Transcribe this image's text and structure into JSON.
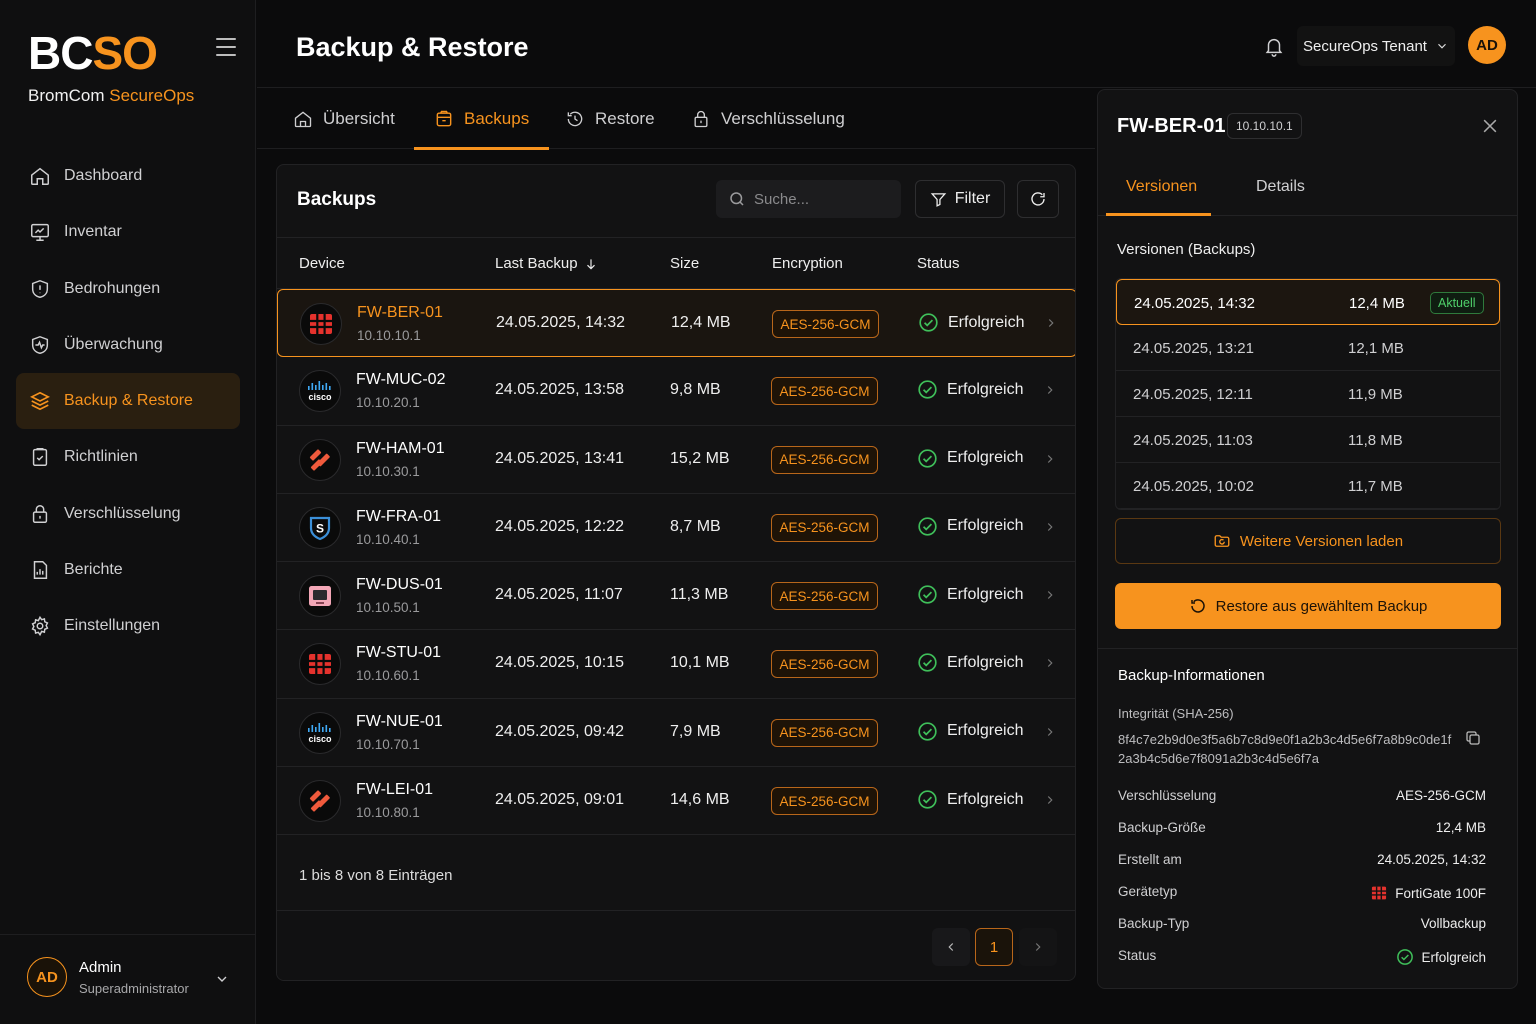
{
  "brand": {
    "logo_bc": "BC",
    "logo_so": "SO",
    "sub_bromcom": "BromCom",
    "sub_secureops": "SecureOps"
  },
  "sidebar": {
    "items": [
      {
        "label": "Dashboard",
        "icon": "home-icon"
      },
      {
        "label": "Inventar",
        "icon": "monitor-icon"
      },
      {
        "label": "Bedrohungen",
        "icon": "shield-alert-icon"
      },
      {
        "label": "Überwachung",
        "icon": "activity-icon"
      },
      {
        "label": "Backup & Restore",
        "icon": "layers-icon",
        "active": true
      },
      {
        "label": "Richtlinien",
        "icon": "clipboard-icon"
      },
      {
        "label": "Verschlüsselung",
        "icon": "lock-icon"
      },
      {
        "label": "Berichte",
        "icon": "report-icon"
      },
      {
        "label": "Einstellungen",
        "icon": "gear-icon"
      }
    ]
  },
  "user": {
    "initials": "AD",
    "name": "Admin",
    "role": "Superadministrator"
  },
  "header": {
    "title": "Backup & Restore",
    "tenant": "SecureOps Tenant",
    "avatar_initials": "AD"
  },
  "tabs": [
    {
      "label": "Übersicht",
      "icon": "home-icon"
    },
    {
      "label": "Backups",
      "icon": "archive-icon",
      "active": true
    },
    {
      "label": "Restore",
      "icon": "history-icon"
    },
    {
      "label": "Verschlüsselung",
      "icon": "lock-icon"
    }
  ],
  "backups": {
    "title": "Backups",
    "search_placeholder": "Suche...",
    "filter_label": "Filter",
    "columns": {
      "device": "Device",
      "last_backup": "Last Backup",
      "size": "Size",
      "encryption": "Encryption",
      "status": "Status"
    },
    "rows": [
      {
        "name": "FW-BER-01",
        "ip": "10.10.10.1",
        "date": "24.05.2025, 14:32",
        "size": "12,4 MB",
        "enc": "AES-256-GCM",
        "status": "Erfolgreich",
        "vendor": "fortinet",
        "selected": true
      },
      {
        "name": "FW-MUC-02",
        "ip": "10.10.20.1",
        "date": "24.05.2025, 13:58",
        "size": "9,8 MB",
        "enc": "AES-256-GCM",
        "status": "Erfolgreich",
        "vendor": "cisco"
      },
      {
        "name": "FW-HAM-01",
        "ip": "10.10.30.1",
        "date": "24.05.2025, 13:41",
        "size": "15,2 MB",
        "enc": "AES-256-GCM",
        "status": "Erfolgreich",
        "vendor": "paloalto"
      },
      {
        "name": "FW-FRA-01",
        "ip": "10.10.40.1",
        "date": "24.05.2025, 12:22",
        "size": "8,7 MB",
        "enc": "AES-256-GCM",
        "status": "Erfolgreich",
        "vendor": "sophos"
      },
      {
        "name": "FW-DUS-01",
        "ip": "10.10.50.1",
        "date": "24.05.2025, 11:07",
        "size": "11,3 MB",
        "enc": "AES-256-GCM",
        "status": "Erfolgreich",
        "vendor": "sonicwall"
      },
      {
        "name": "FW-STU-01",
        "ip": "10.10.60.1",
        "date": "24.05.2025, 10:15",
        "size": "10,1 MB",
        "enc": "AES-256-GCM",
        "status": "Erfolgreich",
        "vendor": "fortinet"
      },
      {
        "name": "FW-NUE-01",
        "ip": "10.10.70.1",
        "date": "24.05.2025, 09:42",
        "size": "7,9 MB",
        "enc": "AES-256-GCM",
        "status": "Erfolgreich",
        "vendor": "cisco"
      },
      {
        "name": "FW-LEI-01",
        "ip": "10.10.80.1",
        "date": "24.05.2025, 09:01",
        "size": "14,6 MB",
        "enc": "AES-256-GCM",
        "status": "Erfolgreich",
        "vendor": "paloalto"
      }
    ],
    "entries_text": "1 bis 8 von 8 Einträgen",
    "current_page": "1"
  },
  "panel": {
    "device": "FW-BER-01",
    "ip": "10.10.10.1",
    "tab_versions": "Versionen",
    "tab_details": "Details",
    "versions_title": "Versionen (Backups)",
    "versions": [
      {
        "date": "24.05.2025, 14:32",
        "size": "12,4 MB",
        "badge": "Aktuell",
        "selected": true
      },
      {
        "date": "24.05.2025, 13:21",
        "size": "12,1 MB"
      },
      {
        "date": "24.05.2025, 12:11",
        "size": "11,9 MB"
      },
      {
        "date": "24.05.2025, 11:03",
        "size": "11,8 MB"
      },
      {
        "date": "24.05.2025, 10:02",
        "size": "11,7 MB"
      }
    ],
    "more_label": "Weitere Versionen laden",
    "restore_label": "Restore aus gewähltem Backup",
    "info_title": "Backup-Informationen",
    "hash_label": "Integrität (SHA-256)",
    "hash": "8f4c7e2b9d0e3f5a6b7c8d9e0f1a2b3c4d5e6f7a8b9c0de1f2a3b4c5d6e7f8091a2b3c4d5e6f7a",
    "info": [
      {
        "key": "Verschlüsselung",
        "value": "AES-256-GCM"
      },
      {
        "key": "Backup-Größe",
        "value": "12,4 MB"
      },
      {
        "key": "Erstellt am",
        "value": "24.05.2025, 14:32"
      },
      {
        "key": "Gerätetyp",
        "value": "FortiGate 100F",
        "icon": "fortinet-icon"
      },
      {
        "key": "Backup-Typ",
        "value": "Vollbackup"
      },
      {
        "key": "Status",
        "value": "Erfolgreich",
        "icon": "check-circle-icon"
      }
    ]
  },
  "colors": {
    "accent": "#f7931e",
    "success": "#3fbf5a",
    "background": "#0b0b0c"
  }
}
